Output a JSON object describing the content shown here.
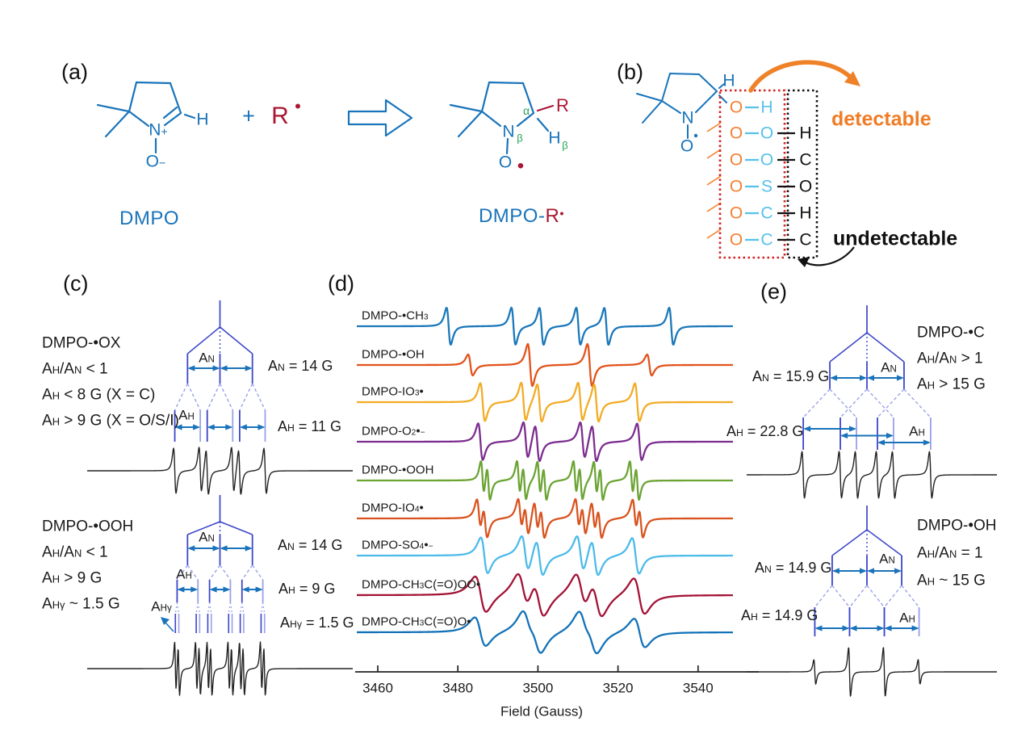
{
  "palette": {
    "blue_structure": "#1a74ba",
    "crimson": "#a91733",
    "green": "#27a356",
    "orange": "#f28133",
    "cyan": "#56c1e9",
    "black_col": "#111111",
    "red_box": "#d51f1f",
    "orange_arrow": "#ef8228",
    "tree_dark": "#3b46c9",
    "tree_light": "#98a1e8",
    "arrow_blue": "#1a73ba",
    "spectrum_black": "#222222"
  },
  "panel_labels": {
    "a": "(a)",
    "b": "(b)",
    "c": "(c)",
    "d": "(d)",
    "e": "(e)"
  },
  "panel_a": {
    "h": "H",
    "n_plus": "N^+^",
    "o_minus": "O^−^",
    "caption_reactant": "DMPO",
    "plus_sign": "+",
    "r_radical": "R",
    "radical_dot": "•",
    "alpha": "α",
    "n": "N",
    "beta_n": "β",
    "h2": "H",
    "beta_h": "β",
    "r2": "R",
    "o": "O",
    "o_dot": "•",
    "caption_product_left": "DMPO-",
    "caption_product_r": "R",
    "caption_product_dot": "•"
  },
  "panel_b": {
    "h": "H",
    "n": "N",
    "o": "O",
    "rows": [
      {
        "a": "O",
        "b": "H",
        "c": ""
      },
      {
        "a": "O",
        "b": "O",
        "c": "H"
      },
      {
        "a": "O",
        "b": "O",
        "c": "C"
      },
      {
        "a": "O",
        "b": "S",
        "c": "O"
      },
      {
        "a": "O",
        "b": "C",
        "c": "H"
      },
      {
        "a": "O",
        "b": "C",
        "c": "C"
      }
    ],
    "detectable": "detectable",
    "undetectable": "undetectable"
  },
  "panel_c_top": {
    "name": "DMPO-•OX",
    "cond1": "A_H_/A_N_ < 1",
    "cond2": "A_H_ <  8 G (X = C)",
    "cond3": "A_H_ > 9 G (X = O/S/I)",
    "an": "A_N_",
    "ah": "A_H_",
    "an_val": "A_N_ = 14 G",
    "ah_val": "A_H_ = 11 G"
  },
  "panel_c_bottom": {
    "name": "DMPO-•OOH",
    "cond1": "A_H_/A_N_ < 1",
    "cond2": "A_H_ > 9 G",
    "cond3": "A_Hγ_ ~ 1.5 G",
    "an": "A_N_",
    "ah": "A_H_",
    "ahg": "A_Hγ_",
    "an_val": "A_N_ = 14 G",
    "ah_val": "A_H_ = 9 G",
    "ahg_val": "A_Hγ_ = 1.5 G"
  },
  "panel_e_top": {
    "name": "DMPO-•C",
    "cond1": "A_H_/A_N_ > 1",
    "cond2": "A_H_ > 15 G",
    "an": "A_N_",
    "ah": "A_H_",
    "an_val": "A_N_ = 15.9 G",
    "ah_val": "A_H_ = 22.8 G"
  },
  "panel_e_bottom": {
    "name": "DMPO-•OH",
    "cond1": "A_H_/A_N_ = 1",
    "cond2": "A_H_ ~ 15 G",
    "an": "A_N_",
    "ah": "A_H_",
    "an_val": "A_N_ = 14.9 G",
    "ah_val": "A_H_ = 14.9 G"
  },
  "chart_data": {
    "type": "line",
    "xlabel": "Field (Gauss)",
    "x_ticks": [
      3460,
      3480,
      3500,
      3520,
      3540
    ],
    "x_range_gauss": [
      3454,
      3549
    ],
    "center_field_gauss": 3505.5,
    "series": [
      {
        "name": "DMPO-•CH_3_",
        "color": "#1b78ba",
        "A_N": 16.2,
        "A_H": 23.2,
        "A_Hgamma": 0,
        "linewidth_G": 0.9
      },
      {
        "name": "DMPO-•OH",
        "color": "#e2531c",
        "A_N": 14.9,
        "A_H": 14.9,
        "A_Hgamma": 0,
        "linewidth_G": 1.0
      },
      {
        "name": "DMPO-IO_3_•",
        "color": "#f2ac25",
        "A_N": 14.2,
        "A_H": 10.2,
        "A_Hgamma": 0,
        "linewidth_G": 1.0
      },
      {
        "name": "DMPO-O_2_•^−^",
        "color": "#7c2d90",
        "A_N": 14.2,
        "A_H": 11.3,
        "A_Hgamma": 0,
        "linewidth_G": 1.0
      },
      {
        "name": "DMPO-•OOH",
        "color": "#6ca434",
        "A_N": 14.1,
        "A_H": 9.0,
        "A_Hgamma": 1.5,
        "linewidth_G": 0.7
      },
      {
        "name": "DMPO-IO_4_•",
        "color": "#d9531f",
        "A_N": 14.3,
        "A_H": 10.3,
        "A_Hgamma": 1.6,
        "linewidth_G": 0.9
      },
      {
        "name": "DMPO-SO_4_•^−^",
        "color": "#4dbbe9",
        "A_N": 13.8,
        "A_H": 10.2,
        "A_Hgamma": 0,
        "linewidth_G": 1.5
      },
      {
        "name": "DMPO-CH_3_C(=O)OO•",
        "color": "#a31336",
        "A_N": 14.5,
        "A_H": 10.6,
        "A_Hgamma": 0,
        "linewidth_G": 2.4
      },
      {
        "name": "DMPO-CH_3_C(=O)O•",
        "color": "#1472b8",
        "A_N": 14.0,
        "A_H": 11.8,
        "A_Hgamma": 0,
        "linewidth_G": 2.4
      }
    ],
    "splitting_trees": [
      {
        "id": "c_top",
        "adduct": "DMPO-•OX",
        "A_N": 14.0,
        "A_H": 11.0,
        "A_Hgamma": 0
      },
      {
        "id": "c_bottom",
        "adduct": "DMPO-•OOH",
        "A_N": 14.0,
        "A_H": 9.0,
        "A_Hgamma": 1.5
      },
      {
        "id": "e_top",
        "adduct": "DMPO-•C",
        "A_N": 15.9,
        "A_H": 22.8,
        "A_Hgamma": 0
      },
      {
        "id": "e_bottom",
        "adduct": "DMPO-•OH",
        "A_N": 14.9,
        "A_H": 14.9,
        "A_Hgamma": 0
      }
    ]
  }
}
